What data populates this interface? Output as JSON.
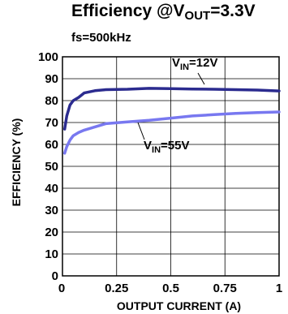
{
  "chart_data": {
    "type": "line",
    "title_prefix": "Efficiency @V",
    "title_sub": "OUT",
    "title_suffix": "=3.3V",
    "subtitle": "fs=500kHz",
    "xlabel": "OUTPUT CURRENT (A)",
    "ylabel": "EFFICIENCY (%)",
    "xlim": [
      0,
      1
    ],
    "ylim": [
      0,
      100
    ],
    "x_ticks": [
      0,
      0.25,
      0.5,
      0.75,
      1
    ],
    "x_tick_labels": [
      "0",
      "0.25",
      "0.5",
      "0.75",
      "1"
    ],
    "y_ticks": [
      0,
      10,
      20,
      30,
      40,
      50,
      60,
      70,
      80,
      90,
      100
    ],
    "y_tick_labels": [
      "0",
      "10",
      "20",
      "30",
      "40",
      "50",
      "60",
      "70",
      "80",
      "90",
      "100"
    ],
    "grid": true,
    "series": [
      {
        "label_main": "V",
        "label_sub": "IN",
        "label_suffix": "=12V",
        "color": "#2b2b8f",
        "x": [
          0.01,
          0.02,
          0.035,
          0.05,
          0.075,
          0.1,
          0.15,
          0.2,
          0.3,
          0.4,
          0.5,
          0.6,
          0.7,
          0.8,
          0.9,
          1.0
        ],
        "y": [
          67,
          73,
          78,
          80,
          81.5,
          83.5,
          84.5,
          85,
          85.2,
          85.6,
          85.5,
          85.3,
          85.2,
          85.0,
          84.8,
          84.4
        ]
      },
      {
        "label_main": "V",
        "label_sub": "IN",
        "label_suffix": "=55V",
        "color": "#7878f0",
        "x": [
          0.01,
          0.02,
          0.035,
          0.05,
          0.075,
          0.1,
          0.15,
          0.2,
          0.3,
          0.4,
          0.5,
          0.6,
          0.7,
          0.8,
          0.9,
          1.0
        ],
        "y": [
          56,
          59,
          62,
          64,
          65.5,
          66.5,
          68,
          69.5,
          70.3,
          71,
          72,
          73,
          73.6,
          74.2,
          74.5,
          74.8
        ]
      }
    ]
  }
}
